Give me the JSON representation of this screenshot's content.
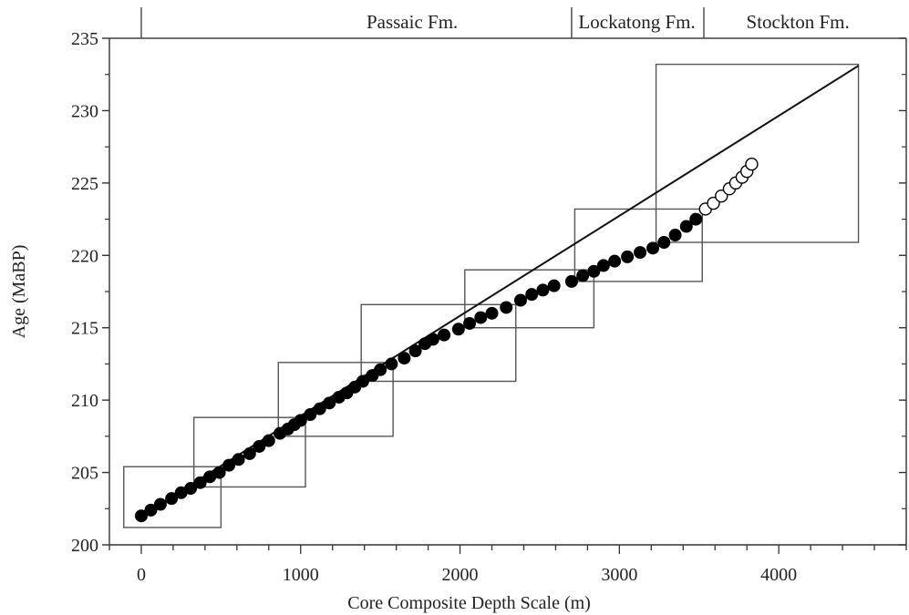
{
  "chart_data": {
    "type": "scatter",
    "title": "",
    "xlabel": "Core Composite Depth Scale (m)",
    "ylabel": "Age (MaBP)",
    "xlim": [
      -200,
      4800
    ],
    "ylim": [
      200,
      235
    ],
    "xticks": [
      0,
      1000,
      2000,
      3000,
      4000
    ],
    "yticks": [
      200,
      205,
      210,
      215,
      220,
      225,
      230,
      235
    ],
    "formations": [
      {
        "name": "Passaic Fm.",
        "start": -200,
        "end": 2700
      },
      {
        "name": "Lockatong Fm.",
        "start": 2700,
        "end": 3530
      },
      {
        "name": "Stockton Fm.",
        "start": 3530,
        "end": 4800
      }
    ],
    "formation_boundaries": [
      0,
      2700,
      3530
    ],
    "boxes": [
      {
        "x0": -110,
        "x1": 500,
        "y0": 201.2,
        "y1": 205.4
      },
      {
        "x0": 330,
        "x1": 1030,
        "y0": 204.0,
        "y1": 208.8
      },
      {
        "x0": 860,
        "x1": 1580,
        "y0": 207.5,
        "y1": 212.6
      },
      {
        "x0": 1380,
        "x1": 2350,
        "y0": 211.3,
        "y1": 216.6
      },
      {
        "x0": 2030,
        "x1": 2840,
        "y0": 215.0,
        "y1": 219.0
      },
      {
        "x0": 2720,
        "x1": 3520,
        "y0": 218.2,
        "y1": 223.2
      },
      {
        "x0": 3230,
        "x1": 4500,
        "y0": 220.9,
        "y1": 233.2
      }
    ],
    "series": [
      {
        "marker": "filled",
        "x": [
          0,
          60,
          120,
          190,
          250,
          310,
          370,
          430,
          490,
          550,
          610,
          680,
          740,
          800,
          870,
          920,
          960,
          1000,
          1060,
          1120,
          1180,
          1240,
          1290,
          1340,
          1390,
          1450,
          1500,
          1570,
          1650,
          1720,
          1780,
          1830,
          1900,
          1990,
          2060,
          2130,
          2200,
          2290,
          2380,
          2450,
          2520,
          2590,
          2700,
          2770,
          2840,
          2900,
          2970,
          3050,
          3130,
          3210,
          3280,
          3350,
          3420,
          3480
        ],
        "y": [
          202.0,
          202.4,
          202.8,
          203.2,
          203.6,
          203.9,
          204.3,
          204.7,
          205.0,
          205.5,
          205.9,
          206.3,
          206.8,
          207.2,
          207.7,
          208.0,
          208.3,
          208.6,
          209.0,
          209.4,
          209.8,
          210.2,
          210.5,
          210.9,
          211.3,
          211.7,
          212.1,
          212.5,
          212.9,
          213.4,
          213.9,
          214.2,
          214.5,
          214.9,
          215.3,
          215.7,
          216.0,
          216.4,
          216.9,
          217.3,
          217.6,
          217.9,
          218.2,
          218.6,
          218.9,
          219.3,
          219.6,
          219.9,
          220.2,
          220.5,
          220.9,
          221.4,
          222.0,
          222.5
        ]
      },
      {
        "marker": "open",
        "x": [
          3540,
          3590,
          3640,
          3690,
          3730,
          3770,
          3800,
          3830
        ],
        "y": [
          223.2,
          223.6,
          224.1,
          224.6,
          225.0,
          225.4,
          225.8,
          226.3
        ]
      }
    ],
    "trend_line": {
      "x": [
        0,
        4500
      ],
      "y": [
        202.0,
        233.1
      ]
    },
    "grid": false,
    "legend": "none"
  }
}
